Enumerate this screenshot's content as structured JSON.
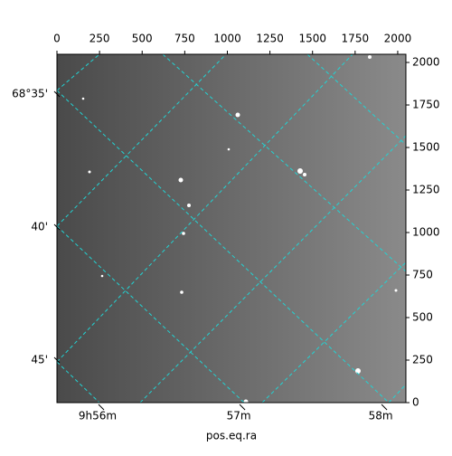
{
  "chart_data": {
    "type": "image",
    "xlabel": "pos.eq.ra",
    "xlim": [
      0,
      2048
    ],
    "ylim": [
      0,
      2048
    ],
    "xticks": [
      0,
      250,
      500,
      750,
      1000,
      1250,
      1500,
      1750,
      2000
    ],
    "yticks": [
      0,
      250,
      500,
      750,
      1000,
      1250,
      1500,
      1750,
      2000
    ],
    "ra_ticks": [
      {
        "value": 260,
        "label": "9h56m"
      },
      {
        "value": 1088,
        "label": "57m"
      },
      {
        "value": 1921,
        "label": "58m"
      }
    ],
    "dec_ticks": [
      {
        "value": 1814,
        "label": "68°35'"
      },
      {
        "value": 1032,
        "label": "40'"
      },
      {
        "value": 250,
        "label": "45'"
      }
    ],
    "grid_color": "#22d3d3"
  }
}
